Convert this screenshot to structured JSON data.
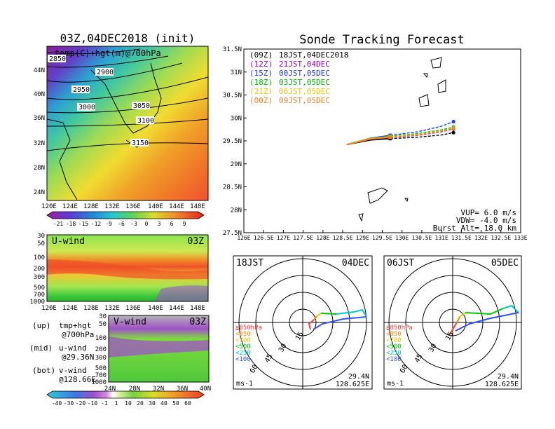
{
  "map_panel": {
    "title": "03Z,04DEC2018 (init)",
    "subtitle": "temp(C)+hgt(m)@700hPa",
    "contour_labels": [
      "2850",
      "2900",
      "2950",
      "3000",
      "3050",
      "3100",
      "3150"
    ],
    "lat_labels": [
      "44N",
      "40N",
      "36N",
      "32N",
      "28N",
      "24N"
    ],
    "lon_labels": [
      "120E",
      "124E",
      "128E",
      "132E",
      "136E",
      "140E",
      "144E",
      "148E"
    ],
    "colorbar_labels": [
      "-21",
      "-18",
      "-15",
      "-12",
      "-9",
      "-6",
      "-3",
      "0",
      "3",
      "6",
      "9"
    ]
  },
  "uwind_panel": {
    "title": "U-wind",
    "time_tag": "03Z",
    "pressure_labels": [
      "30",
      "50",
      "100",
      "200",
      "300",
      "500",
      "700",
      "1000"
    ],
    "lon_labels": [
      "120E",
      "124E",
      "128E",
      "132E",
      "136E",
      "140E",
      "144E",
      "148E"
    ]
  },
  "vwind_panel": {
    "title": "V-wind",
    "time_tag": "03Z",
    "pressure_labels": [
      "30",
      "50",
      "100",
      "200",
      "300",
      "500",
      "700",
      "1000"
    ],
    "lat_labels": [
      "24N",
      "28N",
      "32N",
      "36N",
      "40N"
    ],
    "colorbar_labels": [
      "-40",
      "-30",
      "-20",
      "-10",
      "-1",
      "1",
      "10",
      "20",
      "30",
      "40",
      "50",
      "60"
    ]
  },
  "legend_notes": [
    {
      "label": "(up)",
      "text": "tmp+hgt",
      "sub": "@700hPa"
    },
    {
      "label": "(mid)",
      "text": "u-wind",
      "sub": "@29.36N"
    },
    {
      "label": "(bot)",
      "text": "v-wind",
      "sub": "@128.66E"
    }
  ],
  "tracking": {
    "title": "Sonde Tracking Forecast",
    "launches": [
      {
        "code": "(09Z)",
        "text": "18JST,04DEC2018",
        "color": "#000000"
      },
      {
        "code": "(12Z)",
        "text": "21JST,04DEC",
        "color": "#a000c8"
      },
      {
        "code": "(15Z)",
        "text": "00JST,05DEC",
        "color": "#1e3cff"
      },
      {
        "code": "(18Z)",
        "text": "03JST,05DEC",
        "color": "#00c000"
      },
      {
        "code": "(21Z)",
        "text": "06JST,05DEC",
        "color": "#f0c800"
      },
      {
        "code": "(00Z)",
        "text": "09JST,05DEC",
        "color": "#f08228"
      }
    ],
    "params": {
      "vup": "VUP=  6.0 m/s",
      "vdw": "VDW= -4.0 m/s",
      "burst": "Burst Alt= 18.0 km"
    },
    "lat_labels": [
      "31.5N",
      "31N",
      "30.5N",
      "30N",
      "29.5N",
      "29N",
      "28.5N",
      "28N",
      "27.5N"
    ],
    "lon_labels": [
      "126E",
      "126.5E",
      "127E",
      "127.5E",
      "128E",
      "128.5E",
      "129E",
      "129.5E",
      "130E",
      "130.5E",
      "131E",
      "131.5E",
      "132E",
      "132.5E",
      "133E"
    ]
  },
  "chart_data": [
    {
      "type": "line",
      "title": "Sonde Tracking Forecast",
      "xlabel": "",
      "ylabel": "",
      "xlim": [
        126,
        133
      ],
      "ylim": [
        27.5,
        31.5
      ],
      "series": [
        {
          "name": "(09Z) 18JST,04DEC2018",
          "color": "#000000",
          "x": [
            128.6,
            129.2,
            129.7,
            130.4,
            131.0,
            131.3
          ],
          "y": [
            29.42,
            29.52,
            29.55,
            29.58,
            29.63,
            29.68
          ]
        },
        {
          "name": "(12Z) 21JST,04DEC",
          "color": "#a000c8",
          "x": [
            128.6,
            129.2,
            129.7,
            130.4,
            131.0,
            131.3
          ],
          "y": [
            29.42,
            29.54,
            29.58,
            29.62,
            29.7,
            29.76
          ]
        },
        {
          "name": "(15Z) 00JST,05DEC",
          "color": "#1e3cff",
          "x": [
            128.6,
            129.2,
            129.7,
            130.4,
            131.0,
            131.3
          ],
          "y": [
            29.42,
            29.56,
            29.62,
            29.7,
            29.82,
            29.92
          ]
        },
        {
          "name": "(18Z) 03JST,05DEC",
          "color": "#00c000",
          "x": [
            128.6,
            129.2,
            129.7,
            130.4,
            131.0,
            131.3
          ],
          "y": [
            29.42,
            29.55,
            29.6,
            29.66,
            29.74,
            29.8
          ]
        },
        {
          "name": "(21Z) 06JST,05DEC",
          "color": "#f0c800",
          "x": [
            128.6,
            129.2,
            129.7,
            130.4,
            131.0,
            131.3
          ],
          "y": [
            29.42,
            29.55,
            29.59,
            29.64,
            29.72,
            29.78
          ]
        },
        {
          "name": "(00Z) 09JST,05DEC",
          "color": "#f08228",
          "x": [
            128.6,
            129.2,
            129.7,
            130.4,
            131.0,
            131.3
          ],
          "y": [
            29.42,
            29.54,
            29.58,
            29.63,
            29.71,
            29.77
          ]
        }
      ]
    }
  ],
  "hodographs": [
    {
      "time": "18JST",
      "date": "04DEC",
      "lat": "29.4N",
      "lon": "128.625E",
      "unit": "ms-1",
      "ring_labels": [
        "15",
        "30",
        "45",
        "60"
      ],
      "layers": [
        {
          "label": "≧850hPa",
          "color": "#ff3c3c"
        },
        {
          "label": "<850",
          "color": "#ff8c00"
        },
        {
          "label": "<700",
          "color": "#e6c800"
        },
        {
          "label": "<500",
          "color": "#00c800"
        },
        {
          "label": "<250",
          "color": "#00c8c8"
        },
        {
          "label": "<100",
          "color": "#3050ff"
        }
      ]
    },
    {
      "time": "06JST",
      "date": "05DEC",
      "lat": "29.4N",
      "lon": "128.625E",
      "unit": "ms-1",
      "ring_labels": [
        "15",
        "30",
        "45",
        "60"
      ],
      "layers": [
        {
          "label": "≧850hPa",
          "color": "#ff3c3c"
        },
        {
          "label": "<850",
          "color": "#ff8c00"
        },
        {
          "label": "<700",
          "color": "#e6c800"
        },
        {
          "label": "<500",
          "color": "#00c800"
        },
        {
          "label": "<250",
          "color": "#00c8c8"
        },
        {
          "label": "<100",
          "color": "#3050ff"
        }
      ]
    }
  ]
}
